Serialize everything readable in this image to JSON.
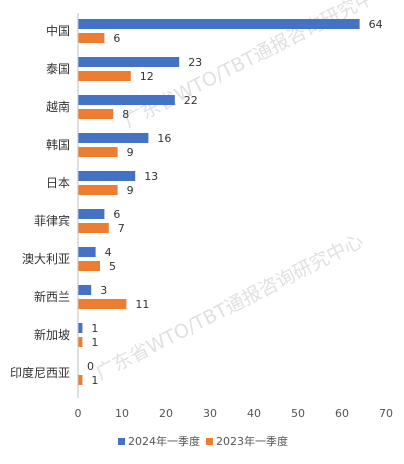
{
  "chart_data": {
    "type": "bar",
    "orientation": "horizontal",
    "categories": [
      "中国",
      "泰国",
      "越南",
      "韩国",
      "日本",
      "菲律宾",
      "澳大利亚",
      "新西兰",
      "新加坡",
      "印度尼西亚"
    ],
    "series": [
      {
        "name": "2024年一季度",
        "values": [
          64,
          23,
          22,
          16,
          13,
          6,
          4,
          3,
          1,
          0
        ],
        "color": "#4472C4"
      },
      {
        "name": "2023年一季度",
        "values": [
          6,
          12,
          8,
          9,
          9,
          7,
          5,
          11,
          1,
          1
        ],
        "color": "#ED7D31"
      }
    ],
    "xlim": [
      0,
      70
    ],
    "xticks": [
      "0",
      "10",
      "20",
      "30",
      "40",
      "50",
      "60",
      "70"
    ],
    "grid": false,
    "legend_position": "bottom",
    "watermark": "广东省WTO/TBT通报咨询研究中心"
  }
}
